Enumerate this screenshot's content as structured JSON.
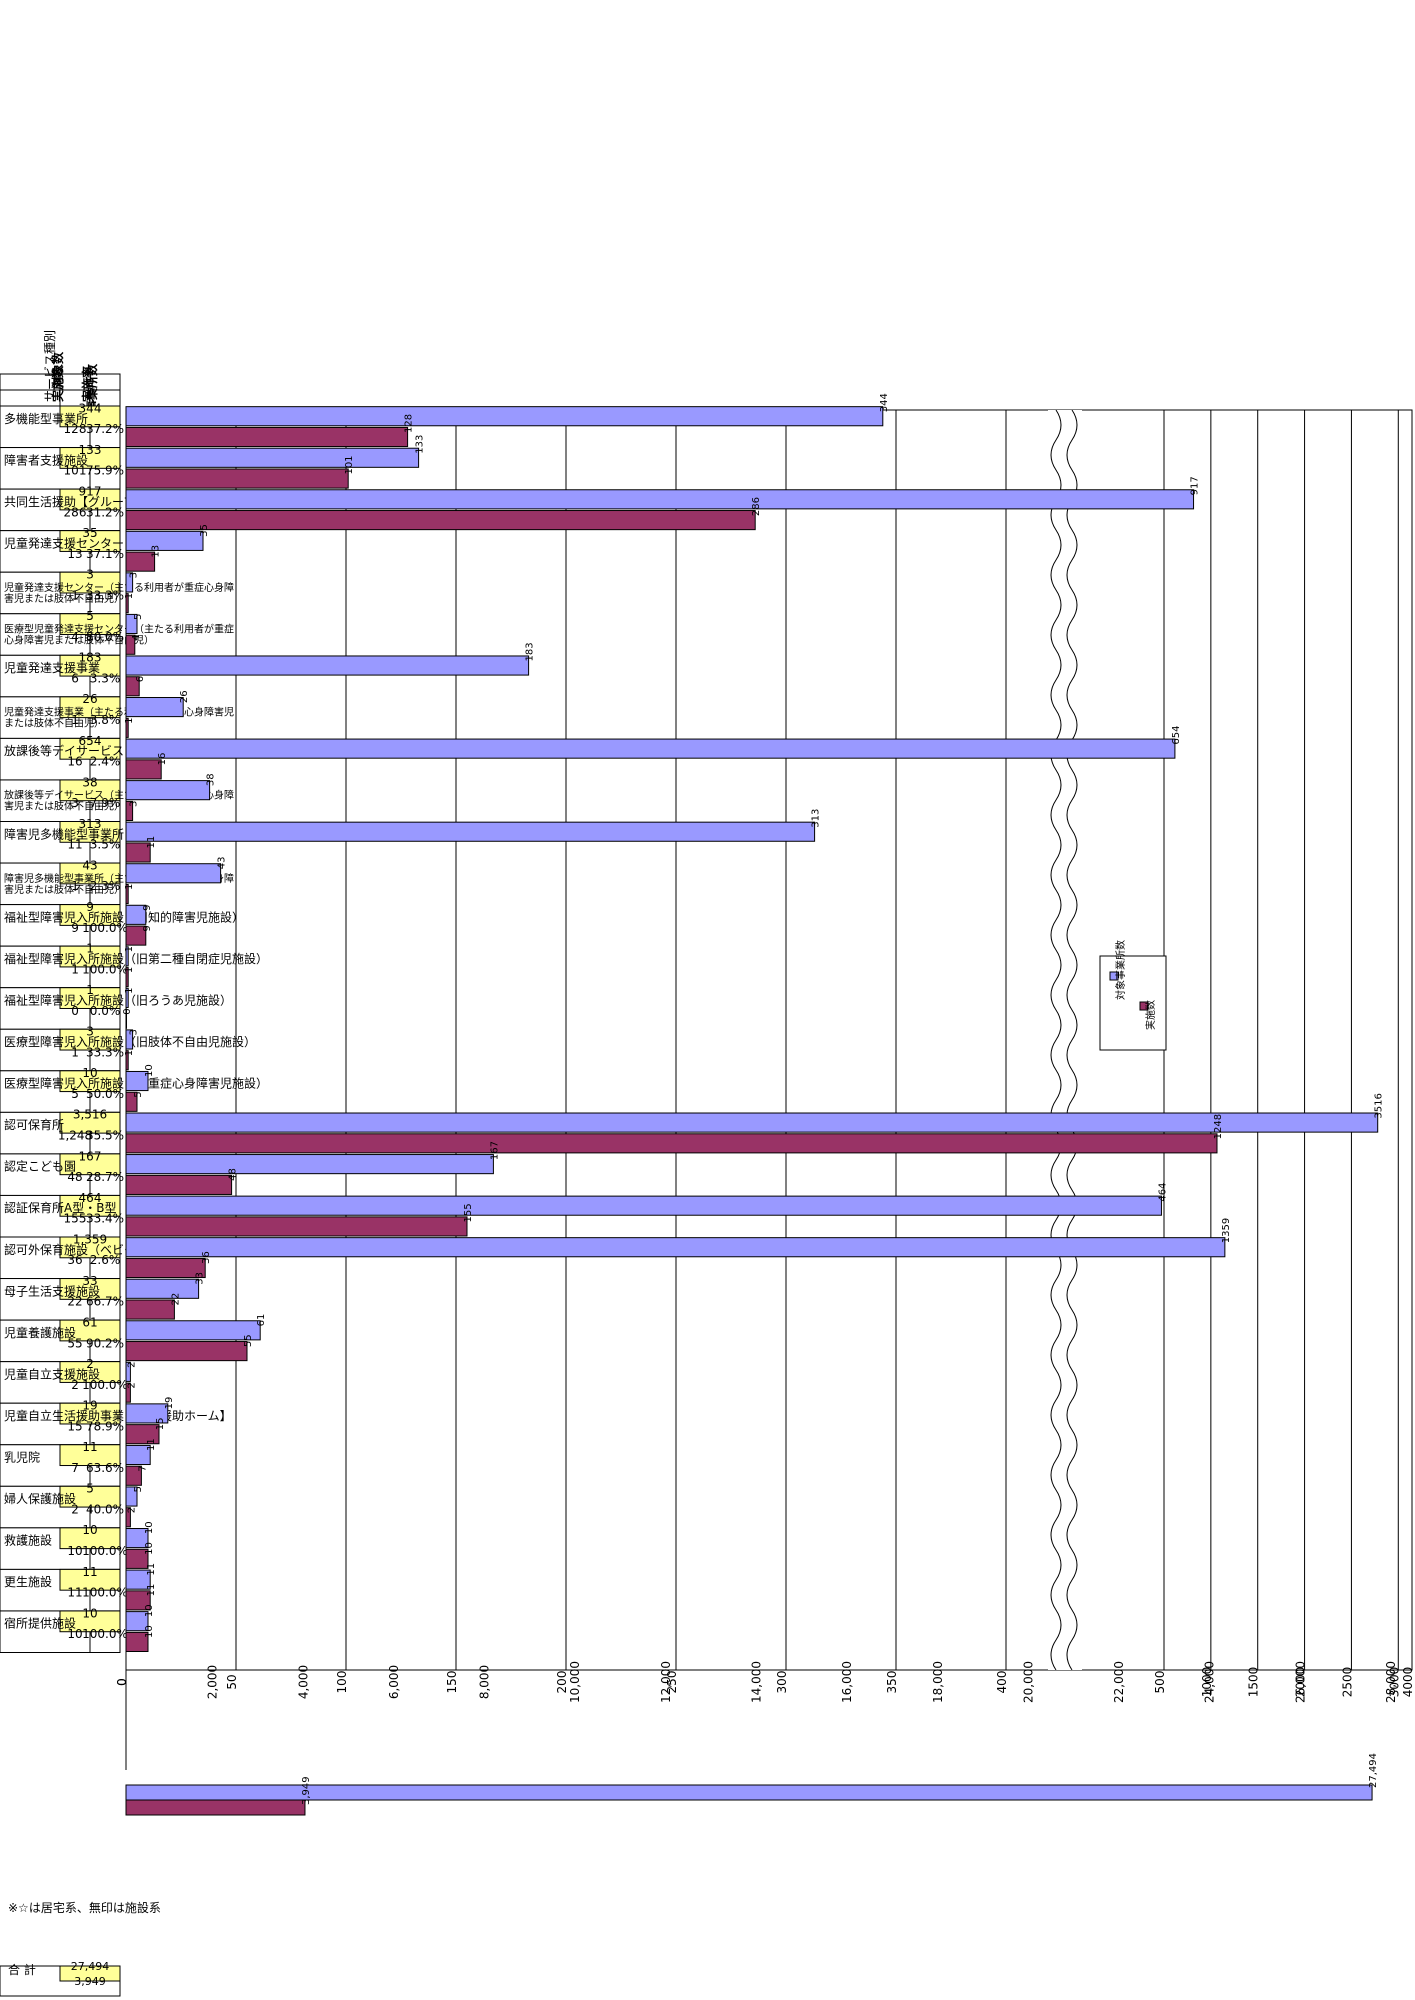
{
  "table": {
    "header_top": "事業所数",
    "header_type": "サービス種別",
    "header_target": "対象数",
    "header_done": "実施数",
    "header_rate": "実施率"
  },
  "colors": {
    "target_bar": "#9999ff",
    "done_bar": "#993366",
    "highlight_cell": "#ffff99",
    "grid": "#000000"
  },
  "chart_data": {
    "type": "bar",
    "orientation": "rotated-90",
    "axis_break": true,
    "lower_axis_ticks": [
      0,
      50,
      100,
      150,
      200,
      250,
      300,
      350,
      400
    ],
    "upper_axis_ticks": [
      500,
      1000,
      1500,
      2000,
      2500,
      3000,
      3500,
      4000
    ],
    "total_axis_ticks": [
      "0",
      "2,000",
      "4,000",
      "6,000",
      "8,000",
      "10,000",
      "12,000",
      "14,000",
      "16,000",
      "18,000",
      "20,000",
      "22,000",
      "24,000",
      "26,000",
      "28,000"
    ],
    "legend": {
      "target": "対象事業所数",
      "done": "実施数"
    },
    "categories": [
      {
        "name": "多機能型事業所",
        "target": 344,
        "done": 128,
        "rate": "37.2%",
        "target_label": "344",
        "done_label": "128"
      },
      {
        "name": "障害者支援施設",
        "target": 133,
        "done": 101,
        "rate": "75.9%",
        "target_label": "133",
        "done_label": "101"
      },
      {
        "name": "共同生活援助【グループホーム】",
        "target": 917,
        "done": 286,
        "rate": "31.2%",
        "target_label": "917",
        "done_label": "286"
      },
      {
        "name": "児童発達支援センター",
        "target": 35,
        "done": 13,
        "rate": "37.1%",
        "target_label": "35",
        "done_label": "13"
      },
      {
        "name": "児童発達支援センター（主たる利用者が重症心身障害児または肢体不自由児）",
        "target": 3,
        "done": 1,
        "rate": "33.3%",
        "target_label": "3",
        "done_label": "1"
      },
      {
        "name": "医療型児童発達支援センター（主たる利用者が重症心身障害児または肢体不自由児）",
        "target": 5,
        "done": 4,
        "rate": "80.0%",
        "target_label": "5",
        "done_label": "4"
      },
      {
        "name": "児童発達支援事業",
        "target": 183,
        "done": 6,
        "rate": "3.3%",
        "target_label": "183",
        "done_label": "6"
      },
      {
        "name": "児童発達支援事業（主たる利用者が重症心身障害児または肢体不自由児）",
        "target": 26,
        "done": 1,
        "rate": "3.8%",
        "target_label": "26",
        "done_label": "1"
      },
      {
        "name": "放課後等デイサービス",
        "target": 654,
        "done": 16,
        "rate": "2.4%",
        "target_label": "654",
        "done_label": "16"
      },
      {
        "name": "放課後等デイサービス（主たる利用者が重症心身障害児または肢体不自由児）",
        "target": 38,
        "done": 3,
        "rate": "7.9%",
        "target_label": "38",
        "done_label": "3"
      },
      {
        "name": "障害児多機能型事業所",
        "target": 313,
        "done": 11,
        "rate": "3.5%",
        "target_label": "313",
        "done_label": "11"
      },
      {
        "name": "障害児多機能型事業所（主たる利用者が重症心身障害児または肢体不自由児）",
        "target": 43,
        "done": 1,
        "rate": "2.3%",
        "target_label": "43",
        "done_label": "1"
      },
      {
        "name": "福祉型障害児入所施設（旧知的障害児施設）",
        "target": 9,
        "done": 9,
        "rate": "100.0%",
        "target_label": "9",
        "done_label": "9"
      },
      {
        "name": "福祉型障害児入所施設（旧第二種自閉症児施設）",
        "target": 1,
        "done": 1,
        "rate": "100.0%",
        "target_label": "1",
        "done_label": "1"
      },
      {
        "name": "福祉型障害児入所施設（旧ろうあ児施設）",
        "target": 1,
        "done": 0,
        "rate": "0.0%",
        "target_label": "1",
        "done_label": "0"
      },
      {
        "name": "医療型障害児入所施設（旧肢体不自由児施設）",
        "target": 3,
        "done": 1,
        "rate": "33.3%",
        "target_label": "3",
        "done_label": "1"
      },
      {
        "name": "医療型障害児入所施設（旧重症心身障害児施設）",
        "target": 10,
        "done": 5,
        "rate": "50.0%",
        "target_label": "10",
        "done_label": "5"
      },
      {
        "name": "認可保育所",
        "target": 3516,
        "done": 1248,
        "rate": "35.5%",
        "target_label": "3,516",
        "done_label": "1,248"
      },
      {
        "name": "認定こども園",
        "target": 167,
        "done": 48,
        "rate": "28.7%",
        "target_label": "167",
        "done_label": "48"
      },
      {
        "name": "認証保育所A型・B型",
        "target": 464,
        "done": 155,
        "rate": "33.4%",
        "target_label": "464",
        "done_label": "155"
      },
      {
        "name": "認可外保育施設（ベビーホテル等）",
        "target": 1359,
        "done": 36,
        "rate": "2.6%",
        "target_label": "1,359",
        "done_label": "36"
      },
      {
        "name": "母子生活支援施設",
        "target": 33,
        "done": 22,
        "rate": "66.7%",
        "target_label": "33",
        "done_label": "22"
      },
      {
        "name": "児童養護施設",
        "target": 61,
        "done": 55,
        "rate": "90.2%",
        "target_label": "61",
        "done_label": "55"
      },
      {
        "name": "児童自立支援施設",
        "target": 2,
        "done": 2,
        "rate": "100.0%",
        "target_label": "2",
        "done_label": "2"
      },
      {
        "name": "児童自立生活援助事業【自立援助ホーム】",
        "target": 19,
        "done": 15,
        "rate": "78.9%",
        "target_label": "19",
        "done_label": "15"
      },
      {
        "name": "乳児院",
        "target": 11,
        "done": 7,
        "rate": "63.6%",
        "target_label": "11",
        "done_label": "7"
      },
      {
        "name": "婦人保護施設",
        "target": 5,
        "done": 2,
        "rate": "40.0%",
        "target_label": "5",
        "done_label": "2"
      },
      {
        "name": "救護施設",
        "target": 10,
        "done": 10,
        "rate": "100.0%",
        "target_label": "10",
        "done_label": "10"
      },
      {
        "name": "更生施設",
        "target": 11,
        "done": 11,
        "rate": "100.0%",
        "target_label": "11",
        "done_label": "11"
      },
      {
        "name": "宿所提供施設",
        "target": 10,
        "done": 10,
        "rate": "100.0%",
        "target_label": "10",
        "done_label": "10"
      }
    ],
    "total": {
      "name": "合 計",
      "target": 27494,
      "done": 3949,
      "target_label": "27,494",
      "done_label": "3,949"
    },
    "note": "※☆は居宅系、無印は施設系"
  }
}
